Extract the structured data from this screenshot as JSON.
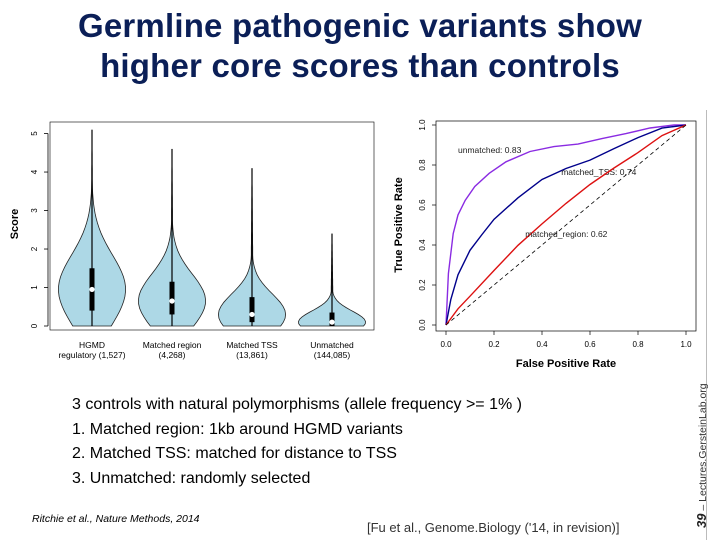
{
  "title_lines": [
    "Germline pathogenic variants show",
    "higher core scores than controls"
  ],
  "body_lines": [
    "3 controls with natural polymorphisms (allele frequency >= 1% )",
    "1. Matched region:  1kb around HGMD variants",
    "2. Matched TSS:  matched for distance to TSS",
    "3. Unmatched: randomly selected"
  ],
  "citation_left": "Ritchie et al., Nature Methods, 2014",
  "citation_right": "[Fu et al., Genome.Biology ('14, in revision)]",
  "slide_number": "39",
  "footer_site": "– Lectures.GersteinLab.org",
  "chart_data": [
    {
      "type": "violin",
      "ylabel": "Score",
      "ylim": [
        0,
        5.3
      ],
      "yticks": [
        "0",
        "1",
        "2",
        "3",
        "4",
        "5"
      ],
      "fill_color": "#add8e6",
      "series": [
        {
          "category": "HGMD",
          "count_label": "regulatory (1,527)",
          "median": 0.95,
          "q1": 0.4,
          "q3": 1.5,
          "min": 0.0,
          "max": 5.1
        },
        {
          "category": "Matched region",
          "count_label": "(4,268)",
          "median": 0.65,
          "q1": 0.3,
          "q3": 1.15,
          "min": 0.0,
          "max": 4.6
        },
        {
          "category": "Matched TSS",
          "count_label": "(13,861)",
          "median": 0.3,
          "q1": 0.1,
          "q3": 0.75,
          "min": 0.0,
          "max": 4.1
        },
        {
          "category": "Unmatched",
          "count_label": "(144,085)",
          "median": 0.1,
          "q1": 0.0,
          "q3": 0.35,
          "min": 0.0,
          "max": 2.4
        }
      ]
    },
    {
      "type": "line",
      "xlabel": "False Positive Rate",
      "ylabel": "True Positive Rate",
      "xlim": [
        0,
        1
      ],
      "ylim": [
        0,
        1
      ],
      "xticks": [
        "0.0",
        "0.2",
        "0.4",
        "0.6",
        "0.8",
        "1.0"
      ],
      "yticks": [
        "0.0",
        "0.2",
        "0.4",
        "0.6",
        "0.8",
        "1.0"
      ],
      "series": [
        {
          "name": "unmatched: 0.83",
          "color": "#8a2be2",
          "x": [
            0,
            0.01,
            0.03,
            0.05,
            0.08,
            0.12,
            0.18,
            0.25,
            0.35,
            0.45,
            0.55,
            0.65,
            0.75,
            0.85,
            0.95,
            1.0
          ],
          "y": [
            0,
            0.25,
            0.45,
            0.55,
            0.63,
            0.7,
            0.76,
            0.81,
            0.86,
            0.89,
            0.91,
            0.94,
            0.96,
            0.98,
            0.995,
            1.0
          ]
        },
        {
          "name": "matched_TSS: 0.74",
          "color": "#00008b",
          "x": [
            0,
            0.02,
            0.05,
            0.1,
            0.15,
            0.2,
            0.3,
            0.4,
            0.5,
            0.6,
            0.7,
            0.8,
            0.9,
            1.0
          ],
          "y": [
            0,
            0.12,
            0.25,
            0.38,
            0.46,
            0.53,
            0.63,
            0.72,
            0.78,
            0.83,
            0.89,
            0.94,
            0.98,
            1.0
          ]
        },
        {
          "name": "matched_region: 0.62",
          "color": "#dd1111",
          "x": [
            0,
            0.05,
            0.1,
            0.2,
            0.3,
            0.4,
            0.5,
            0.6,
            0.7,
            0.8,
            0.9,
            1.0
          ],
          "y": [
            0,
            0.08,
            0.15,
            0.28,
            0.4,
            0.5,
            0.6,
            0.7,
            0.79,
            0.87,
            0.95,
            1.0
          ]
        },
        {
          "name": "",
          "color": "#000000",
          "dashed": true,
          "x": [
            0,
            1
          ],
          "y": [
            0,
            1
          ]
        }
      ]
    }
  ]
}
